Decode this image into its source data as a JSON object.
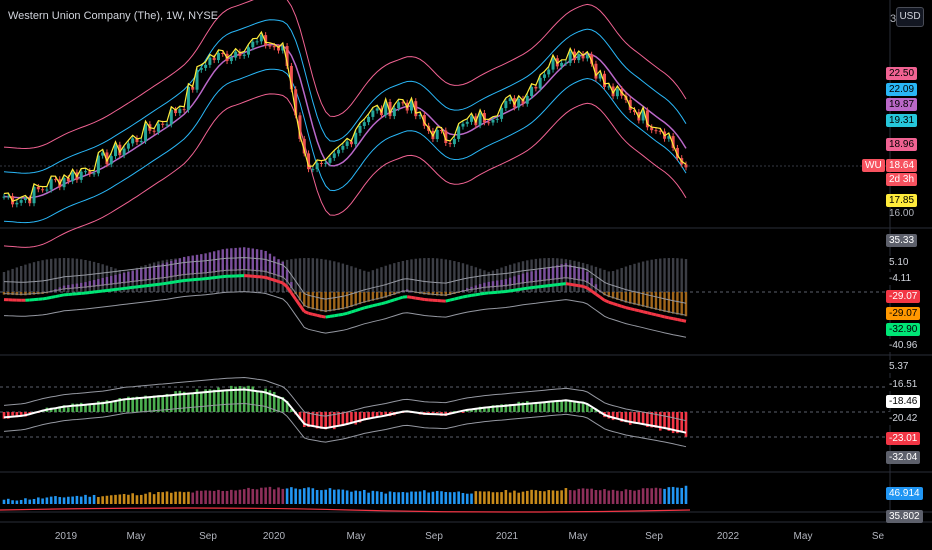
{
  "header": {
    "symbol_title": "Western Union Company (The), 1W, NYSE",
    "currency_button": "USD",
    "top_axis_digit": "3"
  },
  "symbol_tag": {
    "text": "WU",
    "color": "#f7525f"
  },
  "price_axis": {
    "tags": [
      {
        "text": "22.50",
        "bg": "#f06292",
        "fg": "#000000"
      },
      {
        "text": "22.09",
        "bg": "#29b6f6",
        "fg": "#000000"
      },
      {
        "text": "19.87",
        "bg": "#ba68c8",
        "fg": "#000000"
      },
      {
        "text": "19.31",
        "bg": "#26c6da",
        "fg": "#000000"
      },
      {
        "text": "18.96",
        "bg": "#f06292",
        "fg": "#000000"
      },
      {
        "text": "18.64",
        "bg": "#f7525f",
        "fg": "#ffffff"
      },
      {
        "text": "2d 3h",
        "bg": "#f7525f",
        "fg": "#ffffff"
      },
      {
        "text": "17.85",
        "bg": "#ffeb3b",
        "fg": "#000000"
      }
    ],
    "ticks": [
      "16.00"
    ]
  },
  "osc1_axis": {
    "tags": [
      {
        "text": "35.33",
        "bg": "#5d606b",
        "fg": "#ffffff"
      },
      {
        "text": "5.10",
        "bg": "#000000",
        "fg": "#d1d4dc"
      },
      {
        "text": "-4.11",
        "bg": "#000000",
        "fg": "#d1d4dc"
      },
      {
        "text": "-29.07",
        "bg": "#f23645",
        "fg": "#ffffff"
      },
      {
        "text": "-29.07",
        "bg": "#ff9800",
        "fg": "#000000"
      },
      {
        "text": "-32.90",
        "bg": "#00e676",
        "fg": "#000000"
      },
      {
        "text": "-40.96",
        "bg": "#000000",
        "fg": "#d1d4dc"
      }
    ]
  },
  "osc2_axis": {
    "tags": [
      {
        "text": "5.37",
        "bg": "#000000",
        "fg": "#d1d4dc"
      },
      {
        "text": "-16.51",
        "bg": "#000000",
        "fg": "#d1d4dc"
      },
      {
        "text": "-18.46",
        "bg": "#ffffff",
        "fg": "#000000"
      },
      {
        "text": "-20.42",
        "bg": "#000000",
        "fg": "#d1d4dc"
      },
      {
        "text": "-23.01",
        "bg": "#f23645",
        "fg": "#ffffff"
      },
      {
        "text": "-32.04",
        "bg": "#5d606b",
        "fg": "#ffffff"
      }
    ]
  },
  "osc3_axis": {
    "tags": [
      {
        "text": "46.914",
        "bg": "#2196f3",
        "fg": "#ffffff"
      },
      {
        "text": "35.802",
        "bg": "#5d606b",
        "fg": "#ffffff"
      }
    ]
  },
  "time_axis": {
    "labels": [
      "2019",
      "May",
      "Sep",
      "2020",
      "May",
      "Sep",
      "2021",
      "May",
      "Sep",
      "2022",
      "May",
      "Se"
    ]
  },
  "chart_data": {
    "type": "line",
    "symbol": "WU",
    "interval": "1W",
    "exchange": "NYSE",
    "grid": false,
    "price_series": {
      "name": "WU",
      "x": [
        "2018-12",
        "2019-01",
        "2019-02",
        "2019-03",
        "2019-04",
        "2019-05",
        "2019-06",
        "2019-07",
        "2019-08",
        "2019-09",
        "2019-10",
        "2019-11",
        "2019-12",
        "2020-01",
        "2020-02",
        "2020-03",
        "2020-04",
        "2020-05",
        "2020-06",
        "2020-07",
        "2020-08",
        "2020-09",
        "2020-10",
        "2020-11",
        "2020-12",
        "2021-01",
        "2021-02",
        "2021-03",
        "2021-04",
        "2021-05",
        "2021-06",
        "2021-07",
        "2021-08",
        "2021-09",
        "2021-10"
      ],
      "values": [
        17.2,
        17.0,
        17.8,
        18.4,
        18.8,
        19.6,
        20.4,
        21.3,
        22.1,
        23.3,
        26.0,
        26.3,
        26.9,
        27.2,
        26.5,
        19.5,
        18.8,
        20.5,
        22.4,
        22.8,
        23.4,
        21.6,
        20.9,
        21.8,
        22.4,
        23.0,
        23.8,
        25.5,
        26.4,
        26.6,
        24.2,
        23.3,
        22.2,
        21.4,
        18.64
      ]
    },
    "price_axis_ticks": [
      "16.00"
    ],
    "osc1_histogram": [
      -2,
      -3,
      -1,
      4,
      6,
      9,
      12,
      15,
      18,
      22,
      24,
      27,
      28,
      26,
      18,
      -18,
      -24,
      -20,
      -12,
      -6,
      2,
      -2,
      -4,
      2,
      6,
      8,
      12,
      15,
      18,
      14,
      -4,
      -12,
      -18,
      -24,
      -29.07
    ],
    "osc2_histogram": [
      -6,
      -4,
      2,
      6,
      8,
      10,
      14,
      16,
      18,
      20,
      22,
      24,
      25,
      22,
      14,
      -14,
      -18,
      -14,
      -8,
      -4,
      1,
      -2,
      -3,
      2,
      5,
      7,
      9,
      11,
      13,
      10,
      -4,
      -10,
      -14,
      -18,
      -23.01
    ],
    "osc3_histogram": [
      22,
      24,
      26,
      28,
      30,
      30,
      32,
      34,
      36,
      36,
      38,
      40,
      42,
      44,
      44,
      44,
      42,
      40,
      38,
      36,
      36,
      38,
      38,
      36,
      36,
      38,
      38,
      40,
      42,
      42,
      40,
      40,
      42,
      44,
      46.914
    ]
  }
}
